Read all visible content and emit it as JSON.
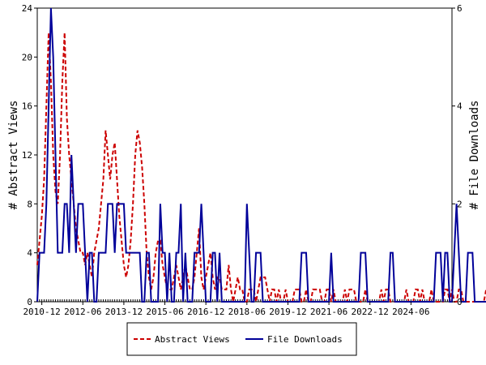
{
  "chart_data": {
    "type": "line",
    "x_ticks": [
      "2010-12",
      "2012-06",
      "2013-12",
      "2015-06",
      "2016-12",
      "2018-06",
      "2019-12",
      "2021-06",
      "2022-12",
      "2024-06"
    ],
    "x_range": [
      "2010-10",
      "2025-12"
    ],
    "ylabel_left": "# Abstract Views",
    "ylabel_right": "# File Downloads",
    "ylim_left": [
      0,
      24
    ],
    "ylim_right": [
      0,
      6
    ],
    "yticks_left": [
      "0",
      "4",
      "8",
      "12",
      "16",
      "20",
      "24"
    ],
    "yticks_right": [
      "0",
      "2",
      "4",
      "6"
    ],
    "grid": false,
    "legend_position": "bottom-center",
    "series": [
      {
        "name": "Abstract Views",
        "axis": "left",
        "color": "#cc0000",
        "style": "dashed",
        "values": [
          3,
          5,
          7,
          10,
          16,
          22,
          18,
          12,
          9,
          8,
          12,
          18,
          22,
          15,
          12,
          10,
          8,
          6,
          5,
          4,
          4,
          3,
          4,
          3,
          2,
          4,
          5,
          6,
          8,
          10,
          14,
          12,
          10,
          12,
          13,
          10,
          7,
          5,
          3,
          2,
          3,
          5,
          8,
          12,
          14,
          13,
          11,
          8,
          4,
          2,
          1,
          2,
          4,
          5,
          5,
          3,
          2,
          1,
          1,
          1,
          2,
          3,
          2,
          1,
          2,
          3,
          2,
          1,
          1,
          2,
          4,
          6,
          2,
          1,
          2,
          3,
          4,
          2,
          1,
          2,
          2,
          1,
          1,
          1,
          3,
          1,
          0,
          1,
          2,
          1,
          1,
          0,
          0,
          1,
          1,
          1,
          0,
          1,
          2,
          2,
          2,
          1,
          0,
          1,
          1,
          0,
          1,
          0,
          0,
          1,
          0,
          0,
          0,
          1,
          1,
          1,
          0,
          0,
          1,
          0,
          0,
          1,
          1,
          1,
          1,
          0,
          0,
          1,
          1,
          0,
          1,
          0,
          0,
          0,
          0,
          1,
          0,
          1,
          1,
          1,
          0,
          0,
          0,
          0,
          1,
          0,
          0,
          0,
          0,
          0,
          0,
          1,
          0,
          1,
          1,
          0,
          0,
          0,
          0,
          0,
          0,
          0,
          1,
          0,
          0,
          0,
          1,
          1,
          0,
          1,
          0,
          0,
          0,
          1,
          0,
          0,
          0,
          0,
          0,
          1,
          1,
          0,
          1,
          0,
          0,
          1,
          1,
          0,
          0,
          0,
          0,
          0,
          0,
          0,
          0,
          0,
          0,
          1,
          0,
          0,
          0,
          0,
          0,
          0,
          0,
          0,
          0,
          0,
          0,
          1,
          1,
          0,
          1
        ]
      },
      {
        "name": "File Downloads",
        "axis": "right",
        "color": "#000099",
        "style": "solid",
        "values": [
          0,
          1,
          1,
          1,
          2,
          4,
          6,
          5,
          3,
          1,
          1,
          1,
          2,
          2,
          1,
          3,
          2,
          1,
          2,
          2,
          2,
          1,
          0,
          1,
          1,
          0,
          0,
          1,
          1,
          1,
          1,
          2,
          2,
          2,
          1,
          2,
          2,
          2,
          2,
          1,
          1,
          1,
          1,
          1,
          1,
          1,
          0,
          0,
          1,
          1,
          0,
          0,
          0,
          0,
          2,
          1,
          1,
          0,
          1,
          0,
          0,
          1,
          1,
          2,
          0,
          1,
          0,
          0,
          0,
          1,
          1,
          1,
          2,
          1,
          0,
          0,
          0,
          1,
          1,
          0,
          1,
          0,
          0,
          0,
          0,
          0,
          0,
          0,
          0,
          0,
          0,
          0,
          2,
          1,
          0,
          0,
          1,
          1,
          1,
          0,
          0,
          0,
          0,
          0,
          0,
          0,
          0,
          0,
          0,
          0,
          0,
          0,
          0,
          0,
          0,
          0,
          1,
          1,
          1,
          0,
          0,
          0,
          0,
          0,
          0,
          0,
          0,
          0,
          0,
          1,
          0,
          0,
          0,
          0,
          0,
          0,
          0,
          0,
          0,
          0,
          0,
          0,
          1,
          1,
          1,
          0,
          0,
          0,
          0,
          0,
          0,
          0,
          0,
          0,
          0,
          1,
          1,
          0,
          0,
          0,
          0,
          0,
          0,
          0,
          0,
          0,
          0,
          0,
          0,
          0,
          0,
          0,
          0,
          0,
          0,
          1,
          1,
          1,
          0,
          1,
          1,
          0,
          0,
          1,
          2,
          1,
          0,
          0,
          0,
          1,
          1,
          1,
          0,
          0,
          0,
          0,
          0,
          0,
          0,
          0,
          0,
          0,
          0,
          0,
          0,
          0,
          0,
          0,
          0,
          0,
          0,
          0,
          0,
          0,
          0,
          0,
          0,
          0,
          0,
          0,
          0,
          0,
          0,
          0
        ]
      }
    ]
  }
}
